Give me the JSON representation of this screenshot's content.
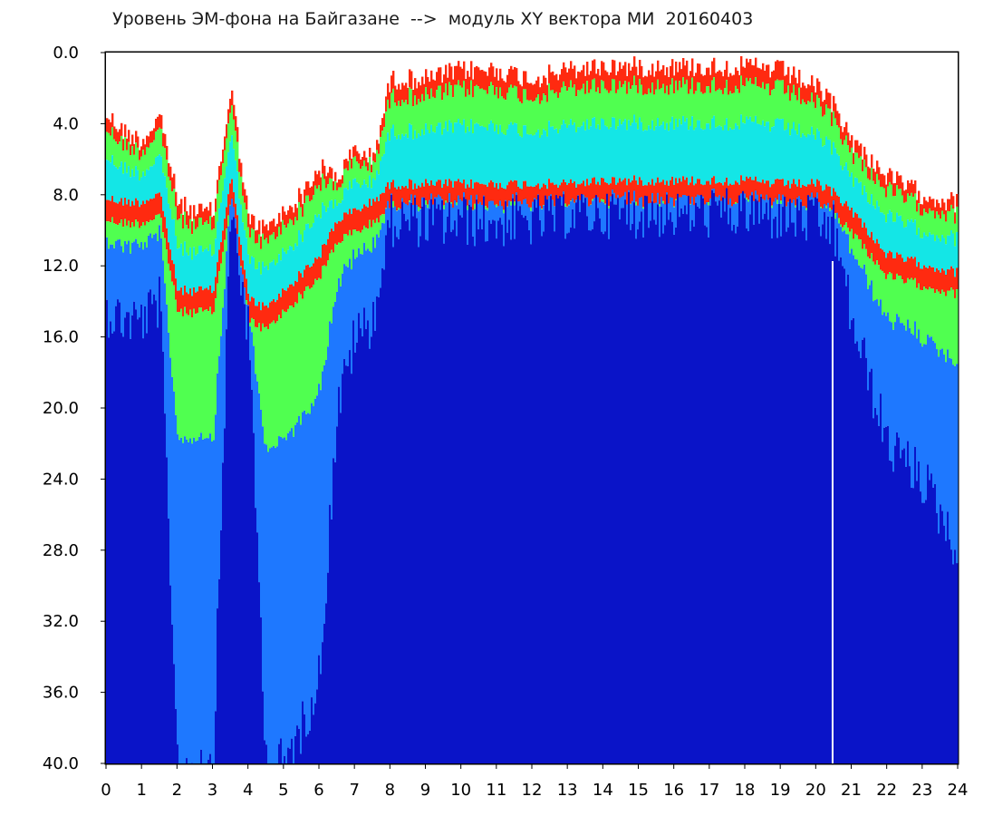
{
  "title": "Уровень ЭМ-фона на Байгазане  -->  модуль XY вектора МИ  20160403",
  "chart_data": {
    "type": "heatmap",
    "title": "Уровень ЭМ-фона на Байгазане  -->  модуль XY вектора МИ  20160403",
    "xlabel": "",
    "ylabel": "",
    "xlim": [
      0,
      24
    ],
    "ylim": [
      40,
      0
    ],
    "x_ticks": [
      "0",
      "1",
      "2",
      "3",
      "4",
      "5",
      "6",
      "7",
      "8",
      "9",
      "10",
      "11",
      "12",
      "13",
      "14",
      "15",
      "16",
      "17",
      "18",
      "19",
      "20",
      "21",
      "22",
      "23",
      "24"
    ],
    "y_ticks": [
      "0.0",
      "4.0",
      "8.0",
      "12.0",
      "16.0",
      "20.0",
      "24.0",
      "28.0",
      "32.0",
      "36.0",
      "40.0"
    ],
    "colors": {
      "low": "#0a14c8",
      "mid_low": "#1e78ff",
      "mid": "#14e6e6",
      "mid_high": "#50ff50",
      "high": "#ff2a10"
    },
    "band_profile": [
      {
        "x": 0.0,
        "top": 3.5,
        "red": 8.8,
        "bottom": 14.5
      },
      {
        "x": 0.5,
        "top": 4.5,
        "red": 9.0,
        "bottom": 15.0
      },
      {
        "x": 1.0,
        "top": 5.0,
        "red": 9.0,
        "bottom": 15.0
      },
      {
        "x": 1.5,
        "top": 3.5,
        "red": 8.5,
        "bottom": 14.0
      },
      {
        "x": 2.0,
        "top": 8.5,
        "red": 14.0,
        "bottom": 40.0
      },
      {
        "x": 2.5,
        "top": 9.0,
        "red": 14.0,
        "bottom": 40.0
      },
      {
        "x": 3.0,
        "top": 9.0,
        "red": 14.0,
        "bottom": 40.0
      },
      {
        "x": 3.5,
        "top": 2.0,
        "red": 7.5,
        "bottom": 8.5
      },
      {
        "x": 4.0,
        "top": 9.5,
        "red": 14.5,
        "bottom": 16.0
      },
      {
        "x": 4.5,
        "top": 10.0,
        "red": 15.0,
        "bottom": 40.0
      },
      {
        "x": 5.0,
        "top": 9.0,
        "red": 14.0,
        "bottom": 40.0
      },
      {
        "x": 5.5,
        "top": 8.0,
        "red": 13.0,
        "bottom": 38.0
      },
      {
        "x": 6.0,
        "top": 6.5,
        "red": 12.0,
        "bottom": 35.0
      },
      {
        "x": 6.5,
        "top": 7.0,
        "red": 10.0,
        "bottom": 20.0
      },
      {
        "x": 7.0,
        "top": 5.5,
        "red": 9.5,
        "bottom": 16.0
      },
      {
        "x": 7.5,
        "top": 6.0,
        "red": 9.0,
        "bottom": 15.0
      },
      {
        "x": 8.0,
        "top": 1.5,
        "red": 8.0,
        "bottom": 9.5
      },
      {
        "x": 9.0,
        "top": 1.5,
        "red": 8.0,
        "bottom": 9.5
      },
      {
        "x": 10.0,
        "top": 1.0,
        "red": 8.0,
        "bottom": 9.5
      },
      {
        "x": 11.0,
        "top": 1.0,
        "red": 8.0,
        "bottom": 9.5
      },
      {
        "x": 12.0,
        "top": 1.5,
        "red": 8.0,
        "bottom": 9.5
      },
      {
        "x": 13.0,
        "top": 1.0,
        "red": 8.0,
        "bottom": 9.0
      },
      {
        "x": 14.0,
        "top": 0.8,
        "red": 7.8,
        "bottom": 9.0
      },
      {
        "x": 15.0,
        "top": 0.8,
        "red": 7.8,
        "bottom": 9.0
      },
      {
        "x": 16.0,
        "top": 0.8,
        "red": 7.8,
        "bottom": 9.0
      },
      {
        "x": 17.0,
        "top": 0.8,
        "red": 7.8,
        "bottom": 9.0
      },
      {
        "x": 18.0,
        "top": 0.8,
        "red": 7.8,
        "bottom": 9.0
      },
      {
        "x": 19.0,
        "top": 1.0,
        "red": 8.0,
        "bottom": 9.2
      },
      {
        "x": 20.0,
        "top": 2.0,
        "red": 8.0,
        "bottom": 9.5
      },
      {
        "x": 20.5,
        "top": 3.0,
        "red": 8.5,
        "bottom": 10.0
      },
      {
        "x": 21.0,
        "top": 5.0,
        "red": 9.5,
        "bottom": 15.0
      },
      {
        "x": 22.0,
        "top": 7.0,
        "red": 12.0,
        "bottom": 22.0
      },
      {
        "x": 23.0,
        "top": 8.0,
        "red": 12.5,
        "bottom": 24.0
      },
      {
        "x": 24.0,
        "top": 8.5,
        "red": 13.0,
        "bottom": 28.0
      }
    ],
    "gaps": [
      {
        "x": 20.45,
        "width": 0.05
      }
    ]
  }
}
